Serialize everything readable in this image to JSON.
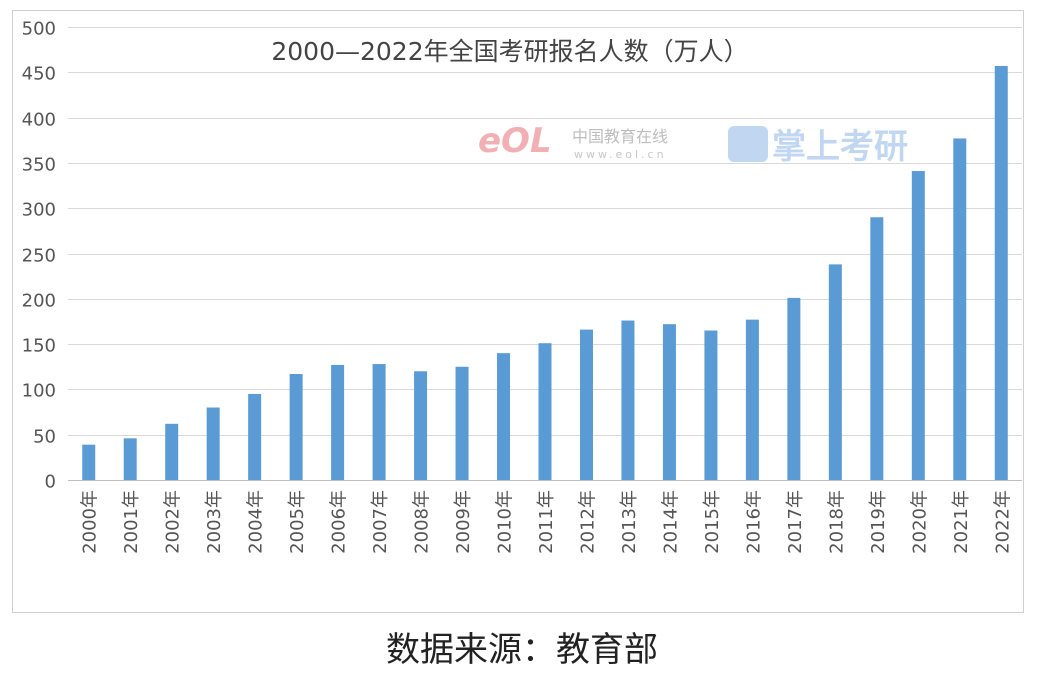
{
  "chart_data": {
    "type": "bar",
    "title": "2000—2022年全国考研报名人数（万人）",
    "xlabel": "",
    "ylabel": "",
    "ylim": [
      0,
      500
    ],
    "yticks": [
      0,
      50,
      100,
      150,
      200,
      250,
      300,
      350,
      400,
      450,
      500
    ],
    "grid": true,
    "legend": "none",
    "categories": [
      "2000年",
      "2001年",
      "2002年",
      "2003年",
      "2004年",
      "2005年",
      "2006年",
      "2007年",
      "2008年",
      "2009年",
      "2010年",
      "2011年",
      "2012年",
      "2013年",
      "2014年",
      "2015年",
      "2016年",
      "2017年",
      "2018年",
      "2019年",
      "2020年",
      "2021年",
      "2022年"
    ],
    "values": [
      39,
      46,
      62,
      80,
      95,
      117,
      127,
      128,
      120,
      125,
      140,
      151,
      166,
      176,
      172,
      165,
      177,
      201,
      238,
      290,
      341,
      377,
      457
    ],
    "bar_color": "#5b9bd5",
    "grid_color": "#d9d9d9"
  },
  "watermark": {
    "eol_logo": "eOL",
    "eol_name": "中国教育在线",
    "eol_url": "www.eol.cn",
    "app_name": "掌上考研"
  },
  "source": "数据来源：教育部"
}
